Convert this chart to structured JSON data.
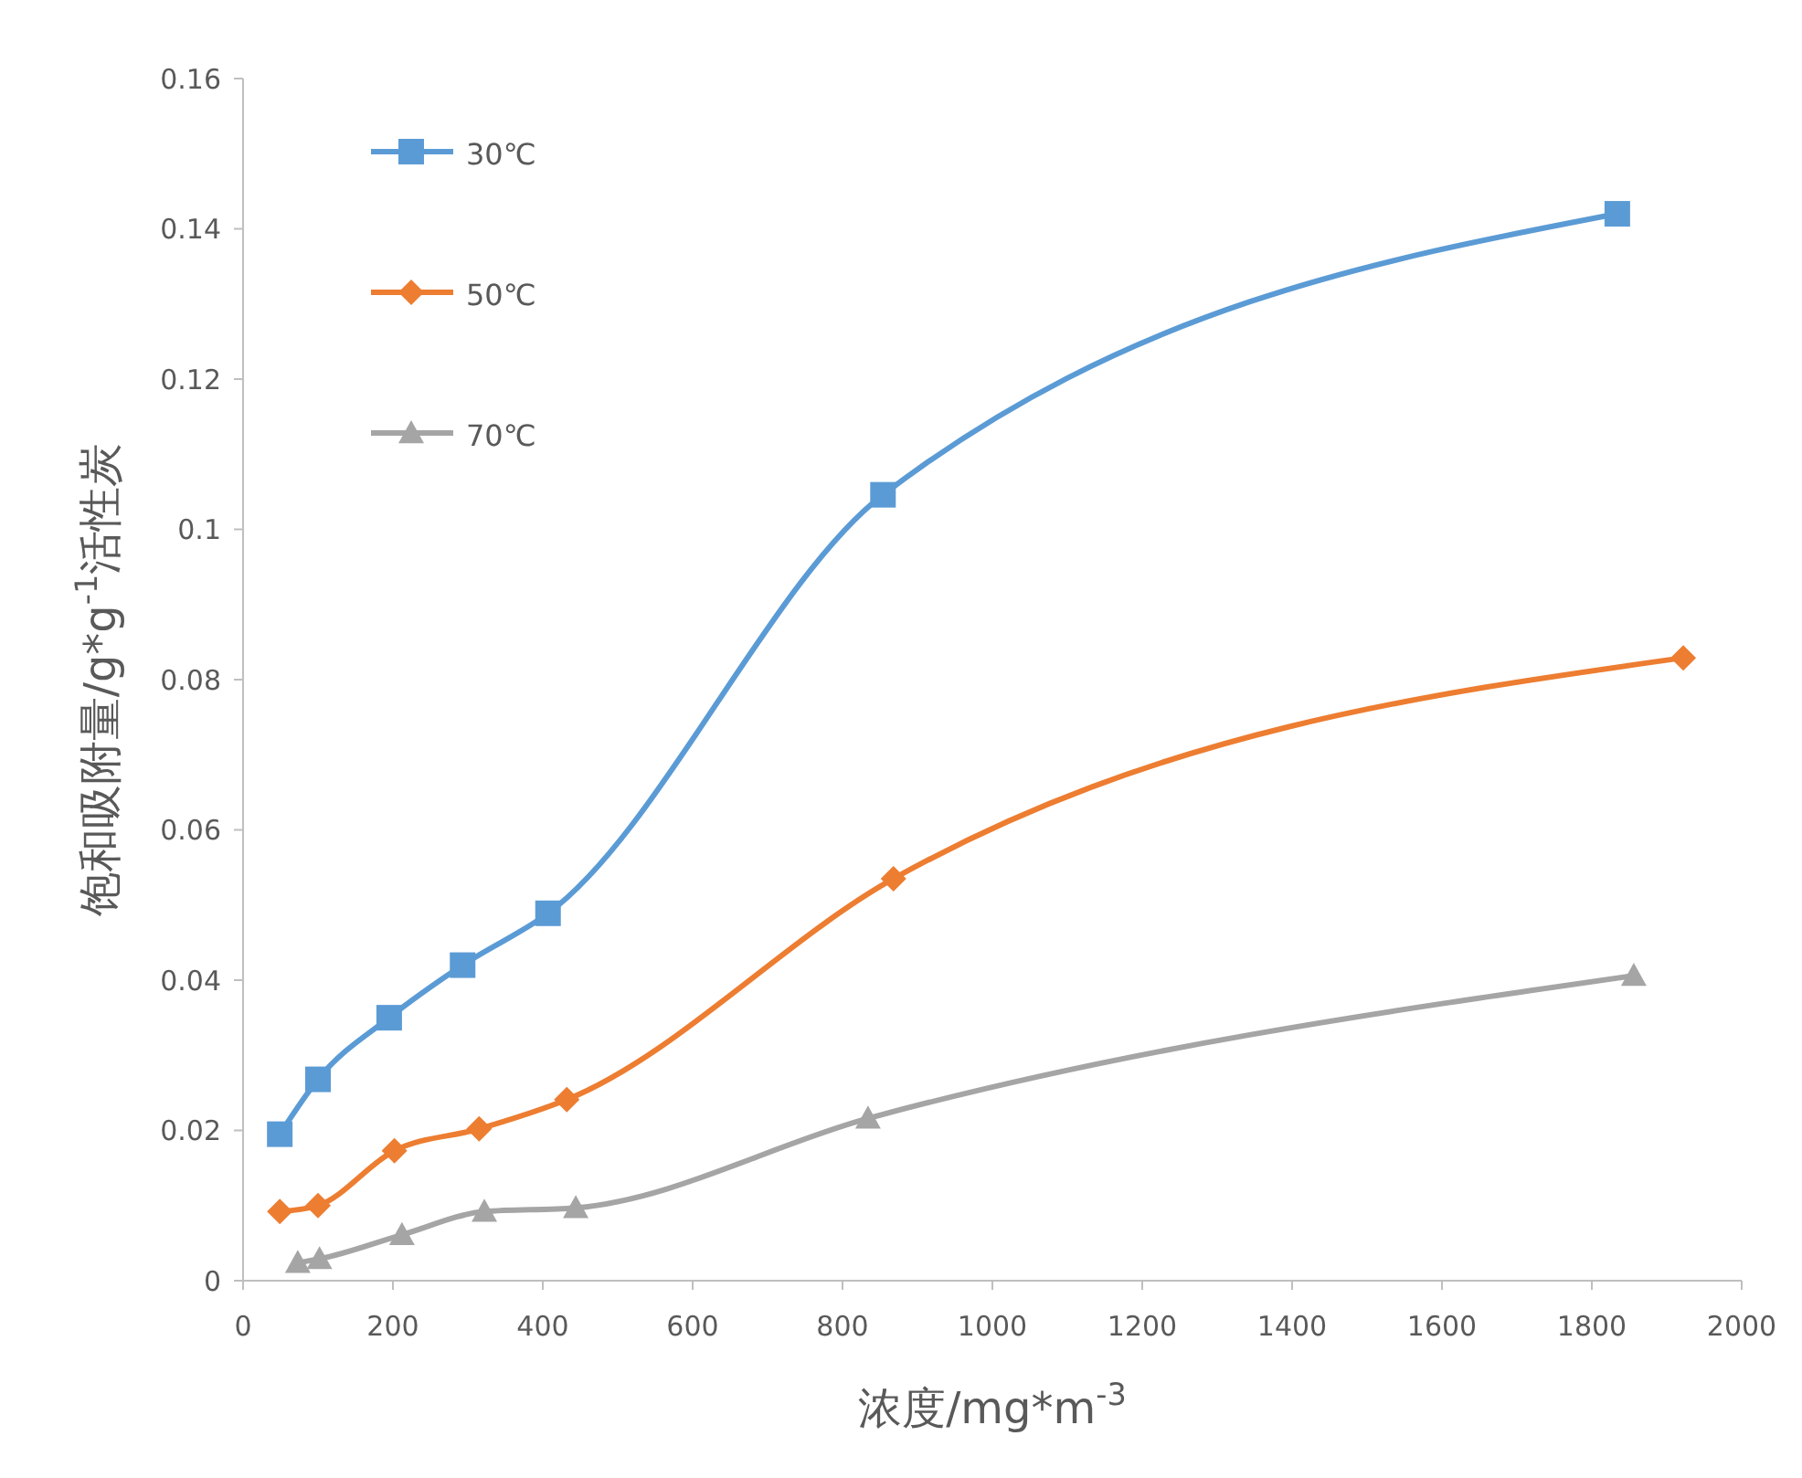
{
  "chart_data": {
    "type": "line",
    "xlabel": "浓度/mg*m$^{-3}$",
    "ylabel": "饱和吸附量/g*g$^{-1}$活性炭",
    "xlim": [
      0,
      2000
    ],
    "xticks": [
      0,
      200,
      400,
      600,
      800,
      1000,
      1200,
      1400,
      1600,
      1800,
      2000
    ],
    "ylim": [
      0,
      0.16
    ],
    "yticks": [
      0,
      0.02,
      0.04,
      0.06,
      0.08,
      0.1,
      0.12,
      0.14,
      0.16
    ],
    "grid": false,
    "legend": "top left",
    "series": [
      {
        "name": "30℃",
        "color": "#5b9bd5",
        "marker": "square",
        "x": [
          49,
          100,
          195,
          293,
          407,
          854,
          1834
        ],
        "values": [
          0.0195,
          0.0268,
          0.035,
          0.042,
          0.0489,
          0.1046,
          0.142
        ]
      },
      {
        "name": "50℃",
        "color": "#ed7d31",
        "marker": "diamond",
        "x": [
          49,
          100,
          202,
          315,
          432,
          868,
          1922
        ],
        "values": [
          0.0092,
          0.01,
          0.0173,
          0.0202,
          0.0241,
          0.0535,
          0.0829
        ]
      },
      {
        "name": "70℃",
        "color": "#a5a5a5",
        "marker": "triangle",
        "x": [
          73,
          102,
          212,
          322,
          444,
          834,
          1856
        ],
        "values": [
          0.0024,
          0.0029,
          0.0061,
          0.0092,
          0.0097,
          0.0216,
          0.0406
        ]
      }
    ]
  }
}
